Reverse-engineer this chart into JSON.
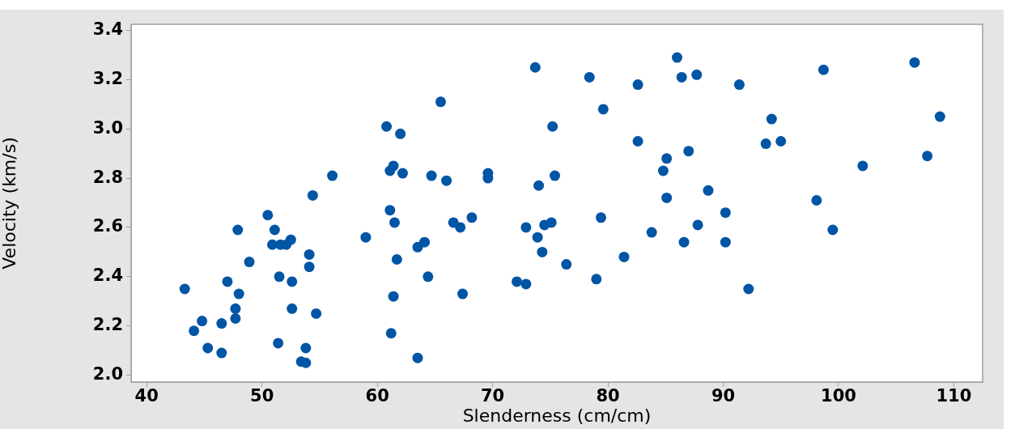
{
  "chart_data": {
    "type": "scatter",
    "xlabel": "Slenderness (cm/cm)",
    "ylabel": "Velocity (km/s)",
    "marker": "circle",
    "xlim": [
      38.65,
      112.5
    ],
    "ylim": [
      1.972,
      3.425
    ],
    "xticks": [
      40,
      50,
      60,
      70,
      80,
      90,
      100,
      110
    ],
    "yticks": [
      {
        "value": 2,
        "label": "2.0"
      },
      {
        "value": 2.2,
        "label": "2.2"
      },
      {
        "value": 2.4,
        "label": "2.4"
      },
      {
        "value": 2.6,
        "label": "2.6"
      },
      {
        "value": 2.8,
        "label": "2.8"
      },
      {
        "value": 3,
        "label": "3.0"
      },
      {
        "value": 3.2,
        "label": "3.2"
      },
      {
        "value": 3.4,
        "label": "3.4"
      }
    ],
    "series": [
      {
        "color": "#0055a5",
        "x": [
          65.5,
          60.8,
          62.0,
          61.4,
          61.1,
          62.2,
          64.7,
          56.1,
          54.4,
          61.1,
          61.5,
          50.5,
          51.1,
          47.9,
          59.0,
          50.9,
          51.6,
          52.1,
          52.5,
          63.5,
          64.1,
          54.1,
          48.9,
          61.7,
          54.1,
          51.5,
          52.6,
          64.4,
          47.0,
          43.3,
          48.0,
          61.4,
          52.6,
          47.7,
          47.7,
          54.7,
          44.8,
          46.5,
          44.1,
          61.2,
          51.4,
          53.8,
          45.3,
          46.5,
          63.5,
          53.4,
          53.8,
          66.0,
          86.0,
          73.7,
          78.4,
          82.6,
          86.4,
          87.7,
          79.6,
          75.2,
          82.6,
          87.0,
          85.1,
          84.8,
          69.6,
          69.6,
          75.4,
          74.0,
          88.7,
          85.1,
          68.2,
          79.4,
          66.6,
          67.2,
          72.9,
          74.5,
          75.1,
          73.9,
          87.8,
          83.8,
          86.6,
          74.3,
          76.4,
          81.4,
          72.1,
          72.9,
          79.0,
          67.4,
          106.6,
          98.7,
          91.4,
          94.2,
          108.8,
          93.7,
          95.0,
          107.7,
          102.1,
          98.1,
          90.2,
          99.5,
          90.2,
          92.2
        ],
        "values": [
          3.11,
          3.01,
          2.98,
          2.85,
          2.83,
          2.82,
          2.81,
          2.81,
          2.73,
          2.67,
          2.62,
          2.65,
          2.59,
          2.59,
          2.56,
          2.53,
          2.53,
          2.53,
          2.55,
          2.52,
          2.54,
          2.49,
          2.46,
          2.47,
          2.44,
          2.4,
          2.38,
          2.4,
          2.38,
          2.35,
          2.33,
          2.32,
          2.27,
          2.27,
          2.23,
          2.25,
          2.22,
          2.21,
          2.18,
          2.17,
          2.13,
          2.11,
          2.11,
          2.09,
          2.07,
          2.055,
          2.05,
          2.79,
          3.29,
          3.25,
          3.21,
          3.18,
          3.21,
          3.22,
          3.08,
          3.01,
          2.95,
          2.91,
          2.88,
          2.83,
          2.82,
          2.8,
          2.81,
          2.77,
          2.75,
          2.72,
          2.64,
          2.64,
          2.62,
          2.6,
          2.6,
          2.61,
          2.62,
          2.56,
          2.61,
          2.58,
          2.54,
          2.5,
          2.45,
          2.48,
          2.38,
          2.37,
          2.39,
          2.33,
          3.27,
          3.24,
          3.18,
          3.04,
          3.05,
          2.94,
          2.95,
          2.89,
          2.85,
          2.71,
          2.66,
          2.59,
          2.54,
          2.35
        ]
      }
    ]
  }
}
